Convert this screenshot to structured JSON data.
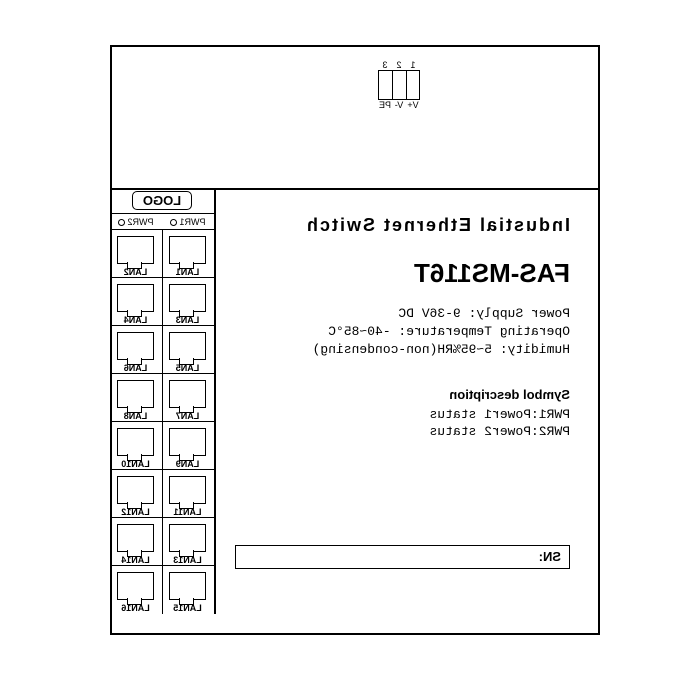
{
  "terminal": {
    "top": [
      "1",
      "2",
      "3"
    ],
    "bottom": [
      "V+",
      "V-",
      "PE"
    ]
  },
  "title": "Industial Ethernet Switch",
  "model": "FAS-MS116T",
  "specs": {
    "l1": "Power Supply: 9-36V DC",
    "l2": "Operating Temperature: -40~85°C",
    "l3": "Humidity: 5~95%RH(non-condensing)"
  },
  "symbol": {
    "h": "Symbol description",
    "l1": "PWR1:Power1 status",
    "l2": "PWR2:Power2 status"
  },
  "sn_label": "SN:",
  "logo": "LOGO",
  "pwr": {
    "a": "PWR1",
    "b": "PWR2"
  },
  "lans": {
    "r1l": "LAN1",
    "r1r": "LAN2",
    "r2l": "LAN3",
    "r2r": "LAN4",
    "r3l": "LAN5",
    "r3r": "LAN6",
    "r4l": "LAN7",
    "r4r": "LAN8",
    "r5l": "LAN9",
    "r5r": "LAN10",
    "r6l": "LAN11",
    "r6r": "LAN12",
    "r7l": "LAN13",
    "r7r": "LAN14",
    "r8l": "LAN15",
    "r8r": "LAN16"
  }
}
